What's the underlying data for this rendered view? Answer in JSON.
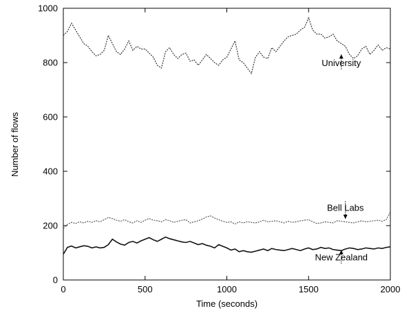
{
  "chart_data": {
    "type": "line",
    "title": "",
    "xlabel": "Time (seconds)",
    "ylabel": "Number of flows",
    "xlim": [
      0,
      2000
    ],
    "ylim": [
      0,
      1000
    ],
    "xticks": [
      "0",
      "500",
      "1000",
      "1500",
      "2000"
    ],
    "yticks": [
      "0",
      "200",
      "400",
      "600",
      "800",
      "1000"
    ],
    "grid": false,
    "legend": "none (series labeled directly with arrows)",
    "series": [
      {
        "name": "University",
        "style": "dotted",
        "color": "#333333",
        "x": [
          0,
          25,
          50,
          75,
          100,
          125,
          150,
          175,
          200,
          225,
          250,
          275,
          300,
          325,
          350,
          375,
          400,
          425,
          450,
          475,
          500,
          525,
          550,
          575,
          600,
          625,
          650,
          675,
          700,
          725,
          750,
          775,
          800,
          825,
          850,
          875,
          900,
          925,
          950,
          975,
          1000,
          1025,
          1050,
          1075,
          1100,
          1125,
          1150,
          1175,
          1200,
          1225,
          1250,
          1275,
          1300,
          1325,
          1350,
          1375,
          1400,
          1425,
          1450,
          1475,
          1500,
          1525,
          1550,
          1575,
          1600,
          1625,
          1650,
          1675,
          1700,
          1725,
          1750,
          1775,
          1800,
          1825,
          1850,
          1875,
          1900,
          1925,
          1950,
          1975,
          2000
        ],
        "y": [
          900,
          915,
          945,
          920,
          895,
          870,
          860,
          840,
          825,
          830,
          845,
          900,
          870,
          840,
          830,
          850,
          880,
          845,
          860,
          850,
          850,
          835,
          820,
          790,
          780,
          840,
          855,
          830,
          815,
          830,
          835,
          805,
          810,
          790,
          810,
          830,
          815,
          800,
          790,
          810,
          820,
          850,
          880,
          810,
          800,
          780,
          760,
          820,
          840,
          820,
          815,
          855,
          840,
          860,
          880,
          895,
          900,
          905,
          920,
          930,
          965,
          920,
          905,
          905,
          890,
          895,
          905,
          880,
          870,
          860,
          830,
          815,
          825,
          850,
          860,
          830,
          845,
          865,
          845,
          855,
          850
        ]
      },
      {
        "name": "Bell Labs",
        "style": "dotted",
        "color": "#555555",
        "x": [
          0,
          25,
          50,
          75,
          100,
          125,
          150,
          175,
          200,
          225,
          250,
          275,
          300,
          325,
          350,
          375,
          400,
          425,
          450,
          475,
          500,
          525,
          550,
          575,
          600,
          625,
          650,
          675,
          700,
          725,
          750,
          775,
          800,
          825,
          850,
          875,
          900,
          925,
          950,
          975,
          1000,
          1025,
          1050,
          1075,
          1100,
          1125,
          1150,
          1175,
          1200,
          1225,
          1250,
          1275,
          1300,
          1325,
          1350,
          1375,
          1400,
          1425,
          1450,
          1475,
          1500,
          1525,
          1550,
          1575,
          1600,
          1625,
          1650,
          1675,
          1700,
          1725,
          1750,
          1775,
          1800,
          1825,
          1850,
          1875,
          1900,
          1925,
          1950,
          1975,
          2000
        ],
        "y": [
          190,
          205,
          212,
          208,
          214,
          210,
          216,
          212,
          218,
          214,
          222,
          230,
          226,
          220,
          216,
          222,
          214,
          210,
          218,
          212,
          220,
          226,
          220,
          218,
          214,
          222,
          218,
          212,
          216,
          220,
          222,
          210,
          214,
          218,
          224,
          232,
          236,
          228,
          222,
          216,
          212,
          214,
          206,
          214,
          210,
          214,
          212,
          210,
          214,
          220,
          214,
          216,
          218,
          214,
          210,
          216,
          212,
          214,
          218,
          220,
          222,
          214,
          208,
          210,
          214,
          212,
          210,
          218,
          216,
          214,
          212,
          210,
          214,
          218,
          214,
          216,
          218,
          220,
          216,
          222,
          250
        ]
      },
      {
        "name": "New Zealand",
        "style": "solid",
        "color": "#111111",
        "x": [
          0,
          25,
          50,
          75,
          100,
          125,
          150,
          175,
          200,
          225,
          250,
          275,
          300,
          325,
          350,
          375,
          400,
          425,
          450,
          475,
          500,
          525,
          550,
          575,
          600,
          625,
          650,
          675,
          700,
          725,
          750,
          775,
          800,
          825,
          850,
          875,
          900,
          925,
          950,
          975,
          1000,
          1025,
          1050,
          1075,
          1100,
          1125,
          1150,
          1175,
          1200,
          1225,
          1250,
          1275,
          1300,
          1325,
          1350,
          1375,
          1400,
          1425,
          1450,
          1475,
          1500,
          1525,
          1550,
          1575,
          1600,
          1625,
          1650,
          1675,
          1700,
          1725,
          1750,
          1775,
          1800,
          1825,
          1850,
          1875,
          1900,
          1925,
          1950,
          1975,
          2000
        ],
        "y": [
          95,
          120,
          125,
          118,
          122,
          126,
          124,
          118,
          122,
          118,
          120,
          130,
          150,
          140,
          132,
          128,
          138,
          142,
          136,
          144,
          150,
          156,
          148,
          142,
          150,
          158,
          152,
          148,
          144,
          140,
          138,
          142,
          136,
          130,
          134,
          128,
          124,
          118,
          130,
          124,
          118,
          110,
          114,
          104,
          108,
          104,
          102,
          106,
          110,
          114,
          108,
          116,
          112,
          110,
          108,
          112,
          116,
          112,
          108,
          114,
          118,
          112,
          114,
          120,
          116,
          118,
          112,
          110,
          108,
          114,
          118,
          116,
          112,
          114,
          118,
          116,
          114,
          118,
          116,
          120,
          122
        ]
      }
    ],
    "annotations": [
      {
        "text": "University",
        "series": "University",
        "arrow_from": [
          1700,
          775
        ],
        "arrow_to": [
          1700,
          830
        ]
      },
      {
        "text": "Bell Labs",
        "series": "Bell Labs",
        "arrow_from": [
          1725,
          290
        ],
        "arrow_to": [
          1725,
          225
        ]
      },
      {
        "text": "New Zealand",
        "series": "New Zealand",
        "arrow_from": [
          1700,
          60
        ],
        "arrow_to": [
          1700,
          110
        ]
      }
    ]
  }
}
